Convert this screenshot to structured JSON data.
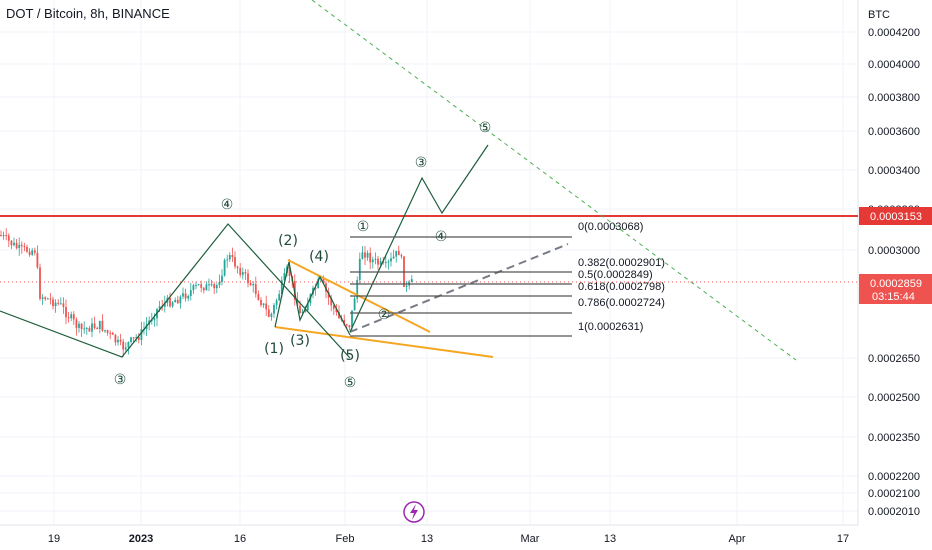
{
  "header": {
    "title": "DOT / Bitcoin, 8h, BINANCE"
  },
  "chart_data": {
    "type": "candlestick",
    "symbol": "DOT / Bitcoin",
    "interval": "8h",
    "exchange": "BINANCE",
    "y_unit": "BTC",
    "y_scale": "log",
    "y_ticks": [
      "0.0004200",
      "0.0004000",
      "0.0003800",
      "0.0003600",
      "0.0003400",
      "0.0003200",
      "0.0003000",
      "0.0002650",
      "0.0002500",
      "0.0002350",
      "0.0002200",
      "0.0002100",
      "0.0002010"
    ],
    "x_ticks": [
      "19",
      "2023",
      "16",
      "Feb",
      "13",
      "Mar",
      "13",
      "Apr",
      "17"
    ],
    "price_tags": {
      "resistance": "0.0003153",
      "last_price": "0.0002859",
      "countdown": "03:15:44"
    },
    "fib_levels": [
      {
        "ratio": "0",
        "price": "0.0003068",
        "label": "0(0.0003068)"
      },
      {
        "ratio": "0.382",
        "price": "0.0002901",
        "label": "0.382(0.0002901)"
      },
      {
        "ratio": "0.5",
        "price": "0.0002849",
        "label": "0.5(0.0002849)"
      },
      {
        "ratio": "0.618",
        "price": "0.0002798",
        "label": "0.618(0.0002798)"
      },
      {
        "ratio": "0.786",
        "price": "0.0002724",
        "label": "0.786(0.0002724)"
      },
      {
        "ratio": "1",
        "price": "0.0002631",
        "label": "1(0.0002631)"
      }
    ],
    "wave_labels": {
      "circled": [
        "③",
        "④",
        "⑤",
        "①",
        "②",
        "③",
        "④",
        "⑤"
      ],
      "paren": [
        "(1)",
        "(2)",
        "(3)",
        "(4)",
        "(5)"
      ]
    },
    "colors": {
      "candle_up": "#26a69a",
      "candle_down": "#ef5350",
      "resistance": "#e53935",
      "trendline": "#f5a623",
      "wave_path": "#1b5e3b",
      "fib": "#555555",
      "diagonal": "#4caf50"
    }
  }
}
